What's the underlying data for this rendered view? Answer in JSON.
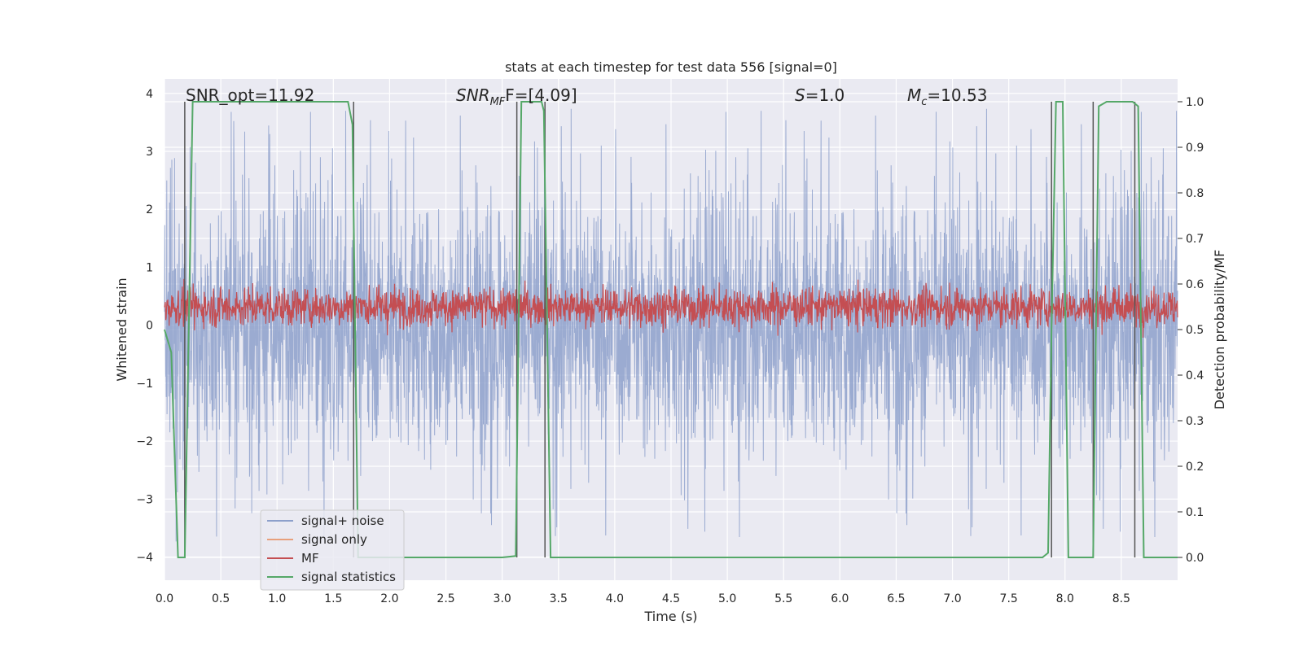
{
  "chart_data": {
    "type": "line",
    "title": "stats at each timestep for test data 556 [signal=0]",
    "xlabel": "Time (s)",
    "ylabel": "Whitened strain",
    "y2label": "Detection probability/MF",
    "xlim": [
      0,
      9.0
    ],
    "ylim": [
      -4.4,
      4.25
    ],
    "y2lim": [
      -0.05,
      1.05
    ],
    "xticks": [
      "0.0",
      "0.5",
      "1.0",
      "1.5",
      "2.0",
      "2.5",
      "3.0",
      "3.5",
      "4.0",
      "4.5",
      "5.0",
      "5.5",
      "6.0",
      "6.5",
      "7.0",
      "7.5",
      "8.0",
      "8.5"
    ],
    "xtick_values": [
      0,
      0.5,
      1,
      1.5,
      2,
      2.5,
      3,
      3.5,
      4,
      4.5,
      5,
      5.5,
      6,
      6.5,
      7,
      7.5,
      8,
      8.5
    ],
    "yticks": [
      "−4",
      "−3",
      "−2",
      "−1",
      "0",
      "1",
      "2",
      "3",
      "4"
    ],
    "ytick_values": [
      -4,
      -3,
      -2,
      -1,
      0,
      1,
      2,
      3,
      4
    ],
    "y2ticks": [
      "0.0",
      "0.1",
      "0.2",
      "0.3",
      "0.4",
      "0.5",
      "0.6",
      "0.7",
      "0.8",
      "0.9",
      "1.0"
    ],
    "y2tick_values": [
      0,
      0.1,
      0.2,
      0.3,
      0.4,
      0.5,
      0.6,
      0.7,
      0.8,
      0.9,
      1.0
    ],
    "grid": true,
    "legend_position": "lower-left",
    "annotations": {
      "snr_opt": "SNR_opt=11.92",
      "snr_mf_main": "SNR",
      "snr_mf_sub": "MF",
      "snr_mf_rest": "F=[4.09]",
      "s_main": "S",
      "s_rest": "=1.0",
      "mc_main": "M",
      "mc_sub": "c",
      "mc_rest": "=10.53"
    },
    "series": [
      {
        "name": "signal+ noise",
        "color": "#8da0cb",
        "description_values": {
          "amplitude_typical": 1.6,
          "amplitude_peak": 3.8
        }
      },
      {
        "name": "signal only",
        "color": "#e8a07c",
        "values": []
      },
      {
        "name": "MF",
        "color": "#c44e52",
        "axis": "y2",
        "description_values": {
          "mean": 0.55,
          "spread": 0.03
        }
      },
      {
        "name": "signal statistics",
        "color": "#55a868",
        "axis": "y2",
        "x": [
          0.0,
          0.06,
          0.12,
          0.18,
          0.25,
          0.3,
          0.6,
          1.0,
          1.4,
          1.63,
          1.67,
          1.72,
          1.8,
          2.5,
          3.0,
          3.12,
          3.17,
          3.25,
          3.35,
          3.37,
          3.43,
          3.5,
          5.0,
          7.0,
          7.8,
          7.85,
          7.88,
          7.92,
          7.98,
          8.03,
          8.07,
          8.15,
          8.25,
          8.3,
          8.37,
          8.45,
          8.6,
          8.65,
          8.7,
          9.0
        ],
        "values": [
          0.5,
          0.45,
          0.0,
          0.0,
          1.0,
          1.0,
          1.0,
          1.0,
          1.0,
          1.0,
          0.95,
          0.0,
          0.0,
          0.0,
          0.0,
          0.003,
          1.0,
          1.0,
          1.0,
          0.98,
          0.0,
          0.0,
          0.0,
          0.0,
          0.0,
          0.01,
          0.5,
          1.0,
          1.0,
          0.0,
          0.0,
          0.0,
          0.0,
          0.99,
          1.0,
          1.0,
          1.0,
          0.99,
          0.0,
          0.0
        ]
      }
    ],
    "vertical_markers_x": [
      0.18,
      1.68,
      3.13,
      3.38,
      7.88,
      8.25,
      8.62
    ]
  }
}
